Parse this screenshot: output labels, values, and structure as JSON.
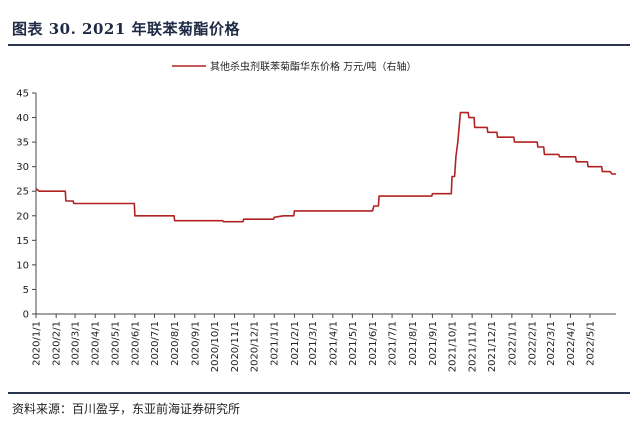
{
  "figure": {
    "title": "图表 30. 2021 年联苯菊酯价格",
    "source": "资料来源：百川盈孚，东亚前海证券研究所"
  },
  "chart_data": {
    "type": "line",
    "title": "",
    "xlabel": "",
    "ylabel": "",
    "ylim": [
      0,
      45
    ],
    "yticks": [
      0,
      5,
      10,
      15,
      20,
      25,
      30,
      35,
      40,
      45
    ],
    "grid": false,
    "legend": "top-right",
    "color": "#b22222",
    "xlim": [
      "2020/1/1",
      "2022/6/10"
    ],
    "xticks": [
      "2020/1/1",
      "2020/2/1",
      "2020/3/1",
      "2020/4/1",
      "2020/5/1",
      "2020/6/1",
      "2020/7/1",
      "2020/8/1",
      "2020/9/1",
      "2020/10/1",
      "2020/11/1",
      "2020/12/1",
      "2021/1/1",
      "2021/2/1",
      "2021/3/1",
      "2021/4/1",
      "2021/5/1",
      "2021/6/1",
      "2021/7/1",
      "2021/8/1",
      "2021/9/1",
      "2021/10/1",
      "2021/11/1",
      "2021/12/1",
      "2022/1/1",
      "2022/2/1",
      "2022/3/1",
      "2022/4/1",
      "2022/5/1"
    ],
    "series": [
      {
        "name": "其他杀虫剂联苯菊酯华东价格 万元/吨（右轴）",
        "points": [
          [
            "2020/1/1",
            25.5
          ],
          [
            "2020/1/6",
            25
          ],
          [
            "2020/2/15",
            25
          ],
          [
            "2020/2/16",
            23
          ],
          [
            "2020/2/27",
            23
          ],
          [
            "2020/2/28",
            22.5
          ],
          [
            "2020/5/31",
            22.5
          ],
          [
            "2020/6/1",
            20
          ],
          [
            "2020/7/31",
            20
          ],
          [
            "2020/8/1",
            19
          ],
          [
            "2020/10/14",
            19
          ],
          [
            "2020/10/15",
            18.8
          ],
          [
            "2020/11/14",
            18.8
          ],
          [
            "2020/11/15",
            19.3
          ],
          [
            "2020/12/31",
            19.3
          ],
          [
            "2021/1/1",
            19.7
          ],
          [
            "2021/1/15",
            20
          ],
          [
            "2021/1/31",
            20
          ],
          [
            "2021/2/1",
            21
          ],
          [
            "2021/6/1",
            21
          ],
          [
            "2021/6/3",
            22
          ],
          [
            "2021/6/10",
            22
          ],
          [
            "2021/6/11",
            24
          ],
          [
            "2021/8/31",
            24
          ],
          [
            "2021/9/1",
            24.5
          ],
          [
            "2021/9/30",
            24.5
          ],
          [
            "2021/10/1",
            28
          ],
          [
            "2021/10/5",
            28
          ],
          [
            "2021/10/7",
            32
          ],
          [
            "2021/10/10",
            35
          ],
          [
            "2021/10/12",
            38
          ],
          [
            "2021/10/14",
            41
          ],
          [
            "2021/10/26",
            41
          ],
          [
            "2021/10/27",
            40
          ],
          [
            "2021/11/4",
            40
          ],
          [
            "2021/11/5",
            38
          ],
          [
            "2021/11/24",
            38
          ],
          [
            "2021/11/25",
            37
          ],
          [
            "2021/12/9",
            37
          ],
          [
            "2021/12/10",
            36
          ],
          [
            "2022/1/4",
            36
          ],
          [
            "2022/1/5",
            35
          ],
          [
            "2022/2/9",
            35
          ],
          [
            "2022/2/10",
            34
          ],
          [
            "2022/2/19",
            34
          ],
          [
            "2022/2/20",
            32.5
          ],
          [
            "2022/3/14",
            32.5
          ],
          [
            "2022/3/15",
            32
          ],
          [
            "2022/4/9",
            32
          ],
          [
            "2022/4/10",
            31
          ],
          [
            "2022/4/27",
            31
          ],
          [
            "2022/4/28",
            30
          ],
          [
            "2022/5/19",
            30
          ],
          [
            "2022/5/20",
            29
          ],
          [
            "2022/6/1",
            29
          ],
          [
            "2022/6/4",
            28.5
          ],
          [
            "2022/6/10",
            28.5
          ]
        ]
      }
    ]
  }
}
